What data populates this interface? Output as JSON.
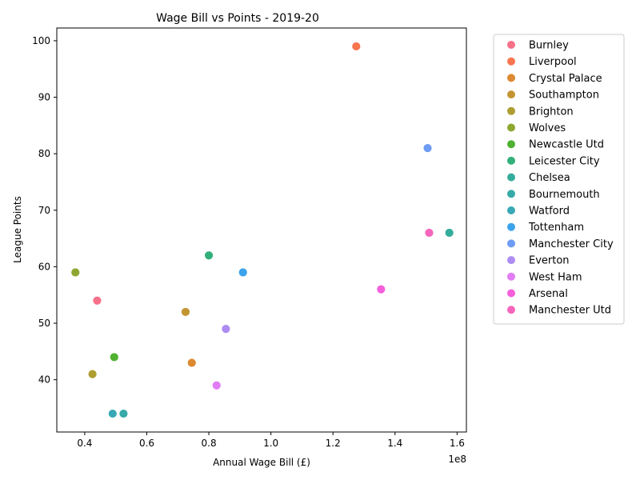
{
  "chart_data": {
    "type": "scatter",
    "title": "Wage Bill vs Points - 2019-20",
    "xlabel": "Annual Wage Bill (£)",
    "ylabel": "League Points",
    "x_offset_label": "1e8",
    "xlim": [
      31000000,
      163000000
    ],
    "ylim": [
      30.75,
      102.25
    ],
    "x_ticks": [
      {
        "value": 40000000,
        "label": "0.4"
      },
      {
        "value": 60000000,
        "label": "0.6"
      },
      {
        "value": 80000000,
        "label": "0.8"
      },
      {
        "value": 100000000,
        "label": "1.0"
      },
      {
        "value": 120000000,
        "label": "1.2"
      },
      {
        "value": 140000000,
        "label": "1.4"
      },
      {
        "value": 160000000,
        "label": "1.6"
      }
    ],
    "y_ticks": [
      {
        "value": 40,
        "label": "40"
      },
      {
        "value": 50,
        "label": "50"
      },
      {
        "value": 60,
        "label": "60"
      },
      {
        "value": 70,
        "label": "70"
      },
      {
        "value": 80,
        "label": "80"
      },
      {
        "value": 90,
        "label": "90"
      },
      {
        "value": 100,
        "label": "100"
      }
    ],
    "grid": false,
    "legend_position": "outside-right-top",
    "series": [
      {
        "name": "Burnley",
        "color": "#f77189",
        "points": [
          {
            "x": 44000000,
            "y": 54
          }
        ]
      },
      {
        "name": "Liverpool",
        "color": "#f7754f",
        "points": [
          {
            "x": 127500000,
            "y": 99
          }
        ]
      },
      {
        "name": "Crystal Palace",
        "color": "#dc8932",
        "points": [
          {
            "x": 74500000,
            "y": 43
          }
        ]
      },
      {
        "name": "Southampton",
        "color": "#c39532",
        "points": [
          {
            "x": 72500000,
            "y": 52
          }
        ]
      },
      {
        "name": "Brighton",
        "color": "#ae9d31",
        "points": [
          {
            "x": 42500000,
            "y": 41
          }
        ]
      },
      {
        "name": "Wolves",
        "color": "#8ea731",
        "points": [
          {
            "x": 37000000,
            "y": 59
          }
        ]
      },
      {
        "name": "Newcastle Utd",
        "color": "#50b131",
        "points": [
          {
            "x": 49500000,
            "y": 44
          }
        ]
      },
      {
        "name": "Leicester City",
        "color": "#33b07a",
        "points": [
          {
            "x": 80000000,
            "y": 62
          }
        ]
      },
      {
        "name": "Chelsea",
        "color": "#35ac9a",
        "points": [
          {
            "x": 157500000,
            "y": 66
          }
        ]
      },
      {
        "name": "Bournemouth",
        "color": "#36aaa7",
        "points": [
          {
            "x": 52500000,
            "y": 34
          }
        ]
      },
      {
        "name": "Watford",
        "color": "#38a8b6",
        "points": [
          {
            "x": 49000000,
            "y": 34
          }
        ]
      },
      {
        "name": "Tottenham",
        "color": "#3ba3ec",
        "points": [
          {
            "x": 91000000,
            "y": 59
          }
        ]
      },
      {
        "name": "Manchester City",
        "color": "#6e9bf4",
        "points": [
          {
            "x": 150500000,
            "y": 81
          }
        ]
      },
      {
        "name": "Everton",
        "color": "#ad8cf4",
        "points": [
          {
            "x": 85500000,
            "y": 49
          }
        ]
      },
      {
        "name": "West Ham",
        "color": "#e17df4",
        "points": [
          {
            "x": 82500000,
            "y": 39
          }
        ]
      },
      {
        "name": "Arsenal",
        "color": "#f45fdc",
        "points": [
          {
            "x": 135500000,
            "y": 56
          }
        ]
      },
      {
        "name": "Manchester Utd",
        "color": "#f565bb",
        "points": [
          {
            "x": 151000000,
            "y": 66
          }
        ]
      }
    ]
  }
}
